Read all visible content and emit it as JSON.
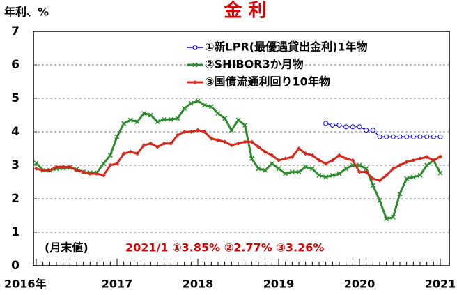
{
  "chart_data": {
    "type": "line",
    "title": "金 利",
    "ylabel": "年利、%",
    "annotations": [
      "(月末値)",
      "2021/1 ①3.85% ②2.77% ③3.26%"
    ],
    "categories": [
      "2016年",
      null,
      null,
      null,
      null,
      null,
      null,
      null,
      null,
      null,
      null,
      null,
      "2017",
      null,
      null,
      null,
      null,
      null,
      null,
      null,
      null,
      null,
      null,
      null,
      "2018",
      null,
      null,
      null,
      null,
      null,
      null,
      null,
      null,
      null,
      null,
      null,
      "2019",
      null,
      null,
      null,
      null,
      null,
      null,
      null,
      null,
      null,
      null,
      null,
      "2020",
      null,
      null,
      null,
      null,
      null,
      null,
      null,
      null,
      null,
      null,
      null,
      "2021"
    ],
    "ylim": [
      0,
      7
    ],
    "yticks": [
      0,
      1,
      2,
      3,
      4,
      5,
      6,
      7
    ],
    "grid": true,
    "legend": "top",
    "series": [
      {
        "name": "①新LPR(最優遇貸出金利)1年物",
        "color": "#0000ff",
        "marker": "circle",
        "values": [
          null,
          null,
          null,
          null,
          null,
          null,
          null,
          null,
          null,
          null,
          null,
          null,
          null,
          null,
          null,
          null,
          null,
          null,
          null,
          null,
          null,
          null,
          null,
          null,
          null,
          null,
          null,
          null,
          null,
          null,
          null,
          null,
          null,
          null,
          null,
          null,
          null,
          null,
          null,
          null,
          null,
          null,
          null,
          4.25,
          4.2,
          4.2,
          4.15,
          4.15,
          4.15,
          4.05,
          4.05,
          3.85,
          3.85,
          3.85,
          3.85,
          3.85,
          3.85,
          3.85,
          3.85,
          3.85,
          3.85
        ]
      },
      {
        "name": "②SHIBOR3か月物",
        "color": "#2e8b2e",
        "marker": "x",
        "values": [
          3.07,
          2.85,
          2.85,
          2.9,
          2.92,
          2.93,
          2.88,
          2.8,
          2.78,
          2.78,
          3.05,
          3.3,
          3.85,
          4.25,
          4.35,
          4.3,
          4.55,
          4.5,
          4.3,
          4.37,
          4.37,
          4.4,
          4.7,
          4.85,
          4.92,
          4.8,
          4.75,
          4.55,
          4.4,
          4.05,
          4.35,
          4.2,
          3.2,
          2.9,
          2.85,
          3.05,
          2.9,
          2.75,
          2.8,
          2.8,
          2.95,
          2.9,
          2.7,
          2.65,
          2.7,
          2.75,
          2.9,
          3.0,
          3.0,
          2.9,
          2.4,
          1.95,
          1.4,
          1.45,
          2.15,
          2.6,
          2.65,
          2.7,
          3.0,
          3.15,
          2.77
        ]
      },
      {
        "name": "③国債流通利回り10年物",
        "color": "#d42b1e",
        "marker": "diamond",
        "values": [
          2.9,
          2.85,
          2.85,
          2.95,
          2.95,
          2.95,
          2.85,
          2.8,
          2.75,
          2.75,
          2.7,
          3.0,
          3.05,
          3.35,
          3.4,
          3.35,
          3.6,
          3.65,
          3.55,
          3.65,
          3.65,
          3.9,
          4.0,
          4.0,
          4.05,
          4.0,
          3.8,
          3.75,
          3.7,
          3.6,
          3.65,
          3.7,
          3.7,
          3.55,
          3.4,
          3.3,
          3.15,
          3.2,
          3.25,
          3.5,
          3.35,
          3.3,
          3.15,
          3.05,
          3.15,
          3.3,
          3.2,
          3.15,
          2.8,
          2.8,
          2.6,
          2.55,
          2.7,
          2.9,
          3.0,
          3.1,
          3.15,
          3.2,
          3.25,
          3.15,
          3.26
        ]
      }
    ]
  }
}
